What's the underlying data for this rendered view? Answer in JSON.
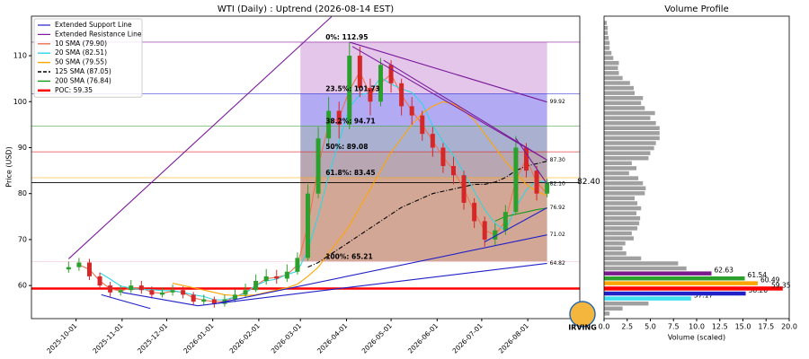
{
  "chart_data": {
    "type": "candlestick",
    "title": "WTI (Daily) : Uptrend (2026-08-14 EST)",
    "y_label": "Price (USD)",
    "xlim": [
      "2025-09-01",
      "2026-09-05"
    ],
    "ylim": [
      52.8,
      118.6
    ],
    "xticks": [
      "2025-10-01",
      "2025-11-01",
      "2025-12-01",
      "2026-01-01",
      "2026-02-01",
      "2026-03-01",
      "2026-04-01",
      "2026-05-01",
      "2026-06-01",
      "2026-07-01",
      "2026-08-01"
    ],
    "yticks": [
      60,
      70,
      80,
      90,
      100,
      110
    ],
    "legend": "upper left",
    "up_color": "#2ca02c",
    "down_color": "#d62728",
    "dates": [
      "2025-09-26",
      "2025-10-03",
      "2025-10-10",
      "2025-10-17",
      "2025-10-24",
      "2025-10-31",
      "2025-11-07",
      "2025-11-14",
      "2025-11-21",
      "2025-11-28",
      "2025-12-05",
      "2025-12-12",
      "2025-12-19",
      "2025-12-26",
      "2026-01-02",
      "2026-01-09",
      "2026-01-16",
      "2026-01-23",
      "2026-01-30",
      "2026-02-06",
      "2026-02-13",
      "2026-02-20",
      "2026-02-27",
      "2026-03-06",
      "2026-03-13",
      "2026-03-20",
      "2026-03-27",
      "2026-04-03",
      "2026-04-10",
      "2026-04-17",
      "2026-04-24",
      "2026-05-01",
      "2026-05-08",
      "2026-05-15",
      "2026-05-22",
      "2026-05-29",
      "2026-06-05",
      "2026-06-12",
      "2026-06-19",
      "2026-06-26",
      "2026-07-03",
      "2026-07-10",
      "2026-07-17",
      "2026-07-24",
      "2026-07-31",
      "2026-08-07",
      "2026-08-14"
    ],
    "open": [
      63.5,
      64,
      65,
      62,
      60,
      58.5,
      59,
      60,
      59,
      58,
      58.5,
      59,
      58,
      56.5,
      57,
      56,
      57,
      58,
      59,
      61,
      62,
      61.5,
      63,
      66,
      80,
      92,
      98,
      95,
      110,
      103,
      100,
      108,
      104,
      99,
      97,
      93,
      90,
      86,
      84,
      78,
      74,
      70,
      72,
      76,
      90,
      85,
      80
    ],
    "high": [
      65.2,
      66,
      65.8,
      62.8,
      60.8,
      60,
      61.2,
      61,
      59.8,
      59.6,
      60.2,
      59.8,
      58.6,
      58,
      57.6,
      58,
      59.2,
      60.4,
      62.4,
      63.6,
      63.4,
      64.6,
      67.2,
      82,
      94.5,
      101,
      100,
      113,
      112,
      105,
      109.5,
      109,
      105,
      101,
      98,
      94.5,
      91,
      88,
      85,
      79,
      75,
      73.5,
      77.5,
      92.5,
      91,
      86,
      83.2
    ],
    "low": [
      62.8,
      63.2,
      61.2,
      59.2,
      57.6,
      57.8,
      58.4,
      58.2,
      57.2,
      57.4,
      57.8,
      57.2,
      55.8,
      55.8,
      55.2,
      55.4,
      56.4,
      57.4,
      58.6,
      60.2,
      60.4,
      60.8,
      62.4,
      65.4,
      79,
      90,
      92,
      94,
      101,
      97,
      99,
      102,
      97,
      95,
      91.5,
      88,
      84.5,
      82,
      76.5,
      72.5,
      68.5,
      68.8,
      71,
      75.5,
      83.5,
      78.5,
      79.2
    ],
    "close": [
      64,
      65,
      62,
      60,
      58.5,
      59,
      60,
      59,
      58,
      58.5,
      59,
      58,
      56.5,
      57,
      56,
      57,
      58,
      59,
      61,
      62,
      61.5,
      63,
      66,
      80,
      92,
      98,
      95,
      110,
      103,
      100,
      108,
      104,
      99,
      97,
      93,
      90,
      86,
      84,
      78,
      74,
      70,
      72,
      76,
      90,
      85,
      80,
      82.4
    ],
    "sma": [
      {
        "name": "10 SMA (79.90)",
        "color": "#f07050",
        "dash": false,
        "values": [
          null,
          64.5,
          63.5,
          61,
          59.3,
          58.8,
          59.5,
          59.5,
          58.5,
          58.3,
          58.8,
          58.5,
          57.3,
          56.8,
          56.5,
          56.5,
          57.5,
          58.5,
          60,
          61.5,
          61.8,
          62.3,
          64.5,
          73,
          86,
          95,
          96.5,
          102.5,
          106.5,
          101.5,
          104,
          106,
          101.5,
          98,
          95,
          91.5,
          88,
          85,
          81,
          76,
          72,
          71,
          74,
          83,
          87.5,
          82.5,
          79.9
        ]
      },
      {
        "name": "20 SMA (82.51)",
        "color": "#30d5e5",
        "dash": false,
        "values": [
          null,
          null,
          null,
          62.8,
          61.4,
          59.9,
          59.4,
          59.1,
          59.1,
          58.9,
          58.9,
          58.5,
          58,
          57.6,
          56.9,
          56.9,
          57.5,
          58.3,
          60,
          61,
          61.4,
          62.4,
          63.1,
          67.6,
          75.3,
          84,
          91.3,
          98.8,
          101.5,
          102,
          105.3,
          103.8,
          102.8,
          102,
          99.5,
          94.8,
          91.3,
          88.3,
          84.5,
          80.5,
          76.5,
          73.5,
          72,
          77,
          80.8,
          82.8,
          82.51
        ]
      },
      {
        "name": "50 SMA (79.55)",
        "color": "#ffa500",
        "dash": false,
        "values": [
          null,
          null,
          null,
          null,
          null,
          null,
          null,
          null,
          null,
          null,
          60.5,
          60,
          59.5,
          59,
          58.5,
          58,
          57.8,
          57.8,
          58,
          58.5,
          59,
          59.5,
          60.3,
          62,
          64,
          67,
          70,
          73,
          77,
          81,
          85,
          89,
          92,
          95,
          97.5,
          99,
          100,
          99.5,
          98,
          96,
          93,
          90,
          87,
          84.5,
          82,
          80.5,
          79.55
        ]
      },
      {
        "name": "125 SMA (87.05)",
        "color": "#000000",
        "dash": true,
        "values": [
          null,
          null,
          null,
          null,
          null,
          null,
          null,
          null,
          null,
          null,
          null,
          null,
          null,
          null,
          null,
          null,
          null,
          null,
          null,
          null,
          null,
          null,
          null,
          64,
          65,
          66.5,
          68,
          69.5,
          71,
          72.5,
          74,
          75.5,
          77,
          78,
          79,
          80,
          80.5,
          81,
          81.5,
          82,
          82,
          82.5,
          83.5,
          85,
          86,
          86.5,
          87.05
        ]
      },
      {
        "name": "200 SMA (76.84)",
        "color": "#1a9a1a",
        "dash": false,
        "values": [
          null,
          null,
          null,
          null,
          null,
          null,
          null,
          null,
          null,
          null,
          null,
          null,
          null,
          null,
          null,
          null,
          null,
          null,
          null,
          null,
          null,
          null,
          null,
          null,
          null,
          null,
          null,
          null,
          null,
          null,
          null,
          null,
          null,
          null,
          null,
          null,
          null,
          null,
          null,
          null,
          null,
          74,
          75,
          75.5,
          76,
          76.5,
          76.84
        ]
      }
    ],
    "support": {
      "name": "Extended Support Line",
      "color": "#2020c8",
      "lines": [
        {
          "x": [
            "2025-10-18",
            "2025-11-20"
          ],
          "y": [
            58,
            55
          ]
        },
        {
          "x": [
            "2025-11-01",
            "2025-12-22"
          ],
          "y": [
            58.5,
            55.6
          ]
        },
        {
          "x": [
            "2025-12-22",
            "2026-08-14"
          ],
          "y": [
            55.6,
            64.82
          ],
          "end_label": "64.82"
        },
        {
          "x": [
            "2026-01-02",
            "2026-08-14"
          ],
          "y": [
            56,
            71.02
          ],
          "end_label": "71.02"
        },
        {
          "x": [
            "2026-07-03",
            "2026-08-14"
          ],
          "y": [
            69.5,
            76.92
          ],
          "end_label": "76.92"
        }
      ]
    },
    "resistance": {
      "name": "Extended Resistance Line",
      "color": "#7a1a9a",
      "lines": [
        {
          "x": [
            "2025-09-26",
            "2026-03-22"
          ],
          "y": [
            65.8,
            118.5
          ]
        },
        {
          "x": [
            "2026-04-03",
            "2026-08-14"
          ],
          "y": [
            112.95,
            99.92
          ],
          "end_label": "99.92"
        },
        {
          "x": [
            "2026-04-05",
            "2026-08-14"
          ],
          "y": [
            112,
            87.3
          ],
          "end_label": "87.30"
        },
        {
          "x": [
            "2026-04-26",
            "2026-08-14"
          ],
          "y": [
            109,
            87.3
          ]
        },
        {
          "x": [
            "2026-07-24",
            "2026-08-14"
          ],
          "y": [
            92,
            82.1
          ],
          "end_label": "82.10"
        }
      ]
    },
    "poc": {
      "name": "POC: 59.35",
      "value": 59.35,
      "color": "#ff0000"
    },
    "last_price": {
      "value": 82.4,
      "label": "82.40"
    },
    "fib": {
      "x": [
        "2026-03-01",
        "2026-08-14"
      ],
      "levels": [
        {
          "label": "0%: 112.95",
          "value": 112.95,
          "color": "#8a1aa0"
        },
        {
          "label": "23.5%: 101.73",
          "value": 101.73,
          "color": "#2020d0"
        },
        {
          "label": "38.2%: 94.71",
          "value": 94.71,
          "color": "#2ca02c"
        },
        {
          "label": "50%: 89.08",
          "value": 89.08,
          "color": "#e02020"
        },
        {
          "label": "61.8%: 83.45",
          "value": 83.45,
          "color": "#ffa500"
        },
        {
          "label": "100%: 65.21",
          "value": 65.21,
          "color": "#f4c8d8"
        }
      ],
      "band_colors": [
        "#d9b3e3",
        "#9a8ef0",
        "#8c96c0",
        "#a08a9a",
        "#c48a72"
      ]
    },
    "logo_text": "IRVING",
    "volume_profile": {
      "type": "barh",
      "title": "Volume Profile",
      "x_label": "Volume (scaled)",
      "xlim": [
        0,
        20
      ],
      "xticks": [
        {
          "value": 0,
          "label": "0.0"
        },
        {
          "value": 2.5,
          "label": "2.5"
        },
        {
          "value": 5,
          "label": "5.0"
        },
        {
          "value": 7.5,
          "label": "7.5"
        },
        {
          "value": 10,
          "label": "10.0"
        },
        {
          "value": 12.5,
          "label": "12.5"
        },
        {
          "value": 15,
          "label": "15.0"
        },
        {
          "value": 17.5,
          "label": "17.5"
        },
        {
          "value": 20,
          "label": "20.0"
        }
      ],
      "levels": [
        53.9,
        54.99,
        56.08,
        57.17,
        58.26,
        59.35,
        60.49,
        61.54,
        62.63,
        63.72,
        64.81,
        65.9,
        66.99,
        68.08,
        69.17,
        70.26,
        71.35,
        72.44,
        73.53,
        74.62,
        75.71,
        76.8,
        77.89,
        78.98,
        80.07,
        81.16,
        82.25,
        83.34,
        84.43,
        85.52,
        86.61,
        87.7,
        88.79,
        89.88,
        90.97,
        92.06,
        93.15,
        94.24,
        95.33,
        96.42,
        97.51,
        98.6,
        99.69,
        100.78,
        101.87,
        102.96,
        104.05,
        105.14,
        106.23,
        107.32,
        108.41,
        109.5,
        110.59,
        111.68,
        112.77,
        113.86,
        114.95,
        116.04,
        117.13
      ],
      "values": [
        0.6,
        2,
        4.8,
        9.4,
        15.3,
        19.3,
        16.6,
        15.2,
        11.6,
        8.9,
        8,
        4,
        2.4,
        2,
        2.3,
        3.2,
        3,
        3.6,
        3.8,
        3.9,
        3.5,
        4,
        3.6,
        3.3,
        4.4,
        4.5,
        4.2,
        3.7,
        2.7,
        3.5,
        3,
        4.8,
        5,
        5.4,
        5.6,
        6,
        6,
        6,
        5.6,
        5,
        5.5,
        4.4,
        4,
        4.2,
        3.3,
        3.2,
        2.8,
        2,
        1.6,
        1.5,
        1.6,
        1,
        0.8,
        0.6,
        0.6,
        0.5,
        0.4,
        0.4,
        0.3
      ],
      "colors": [
        "#a0a0a0",
        "#a0a0a0",
        "#a0a0a0",
        "#40e0f0",
        "#2020c8",
        "#ff0000",
        "#ffa500",
        "#2ca02c",
        "#7a1a8a",
        "#a0a0a0",
        "#a0a0a0",
        "#a0a0a0",
        "#a0a0a0",
        "#a0a0a0",
        "#a0a0a0",
        "#a0a0a0",
        "#a0a0a0",
        "#a0a0a0",
        "#a0a0a0",
        "#a0a0a0",
        "#a0a0a0",
        "#a0a0a0",
        "#a0a0a0",
        "#a0a0a0",
        "#a0a0a0",
        "#a0a0a0",
        "#a0a0a0",
        "#a0a0a0",
        "#a0a0a0",
        "#a0a0a0",
        "#a0a0a0",
        "#a0a0a0",
        "#a0a0a0",
        "#a0a0a0",
        "#a0a0a0",
        "#a0a0a0",
        "#a0a0a0",
        "#a0a0a0",
        "#a0a0a0",
        "#a0a0a0",
        "#a0a0a0",
        "#a0a0a0",
        "#a0a0a0",
        "#a0a0a0",
        "#a0a0a0",
        "#a0a0a0",
        "#a0a0a0",
        "#a0a0a0",
        "#a0a0a0",
        "#a0a0a0",
        "#a0a0a0",
        "#a0a0a0",
        "#a0a0a0",
        "#a0a0a0",
        "#a0a0a0",
        "#a0a0a0",
        "#a0a0a0",
        "#a0a0a0",
        "#a0a0a0"
      ],
      "level_labels": [
        null,
        null,
        null,
        "57.17",
        "58.26",
        "59.35",
        "60.49",
        "61.54",
        "62.63",
        null,
        null,
        null,
        null,
        null,
        null,
        null,
        null,
        null,
        null,
        null,
        null,
        null,
        null,
        null,
        null,
        null,
        null,
        null,
        null,
        null,
        null,
        null,
        null,
        null,
        null,
        null,
        null,
        null,
        null,
        null,
        null,
        null,
        null,
        null,
        null,
        null,
        null,
        null,
        null,
        null,
        null,
        null,
        null,
        null,
        null,
        null,
        null,
        null,
        null
      ]
    }
  }
}
